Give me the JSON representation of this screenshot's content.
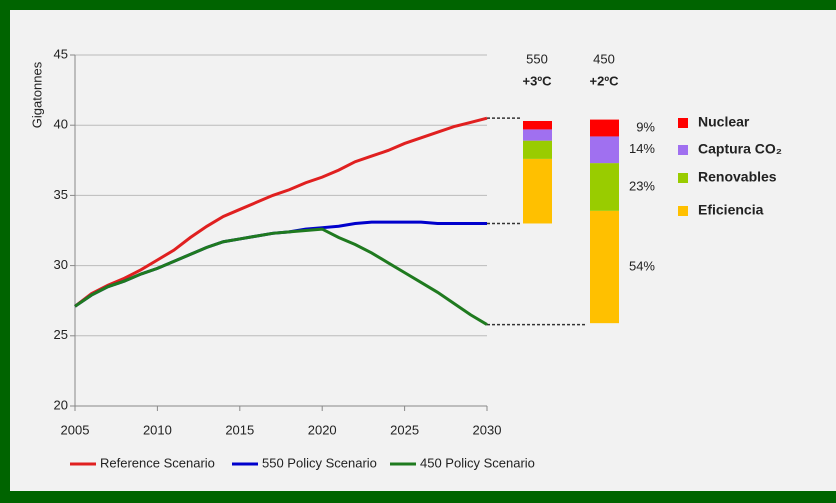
{
  "chart_data": {
    "type": "line",
    "ylabel": "Gigatonnes",
    "x": [
      2005,
      2006,
      2007,
      2008,
      2009,
      2010,
      2011,
      2012,
      2013,
      2014,
      2015,
      2016,
      2017,
      2018,
      2019,
      2020,
      2021,
      2022,
      2023,
      2024,
      2025,
      2026,
      2027,
      2028,
      2029,
      2030
    ],
    "xlim": [
      2005,
      2030
    ],
    "xticks": [
      2005,
      2010,
      2015,
      2020,
      2025,
      2030
    ],
    "ylim": [
      20,
      45
    ],
    "yticks": [
      20,
      25,
      30,
      35,
      40,
      45
    ],
    "grid": true,
    "series": [
      {
        "name": "Reference Scenario",
        "color": "#e02020",
        "values": [
          27.1,
          28.0,
          28.6,
          29.1,
          29.7,
          30.4,
          31.1,
          32.0,
          32.8,
          33.5,
          34.0,
          34.5,
          35.0,
          35.4,
          35.9,
          36.3,
          36.8,
          37.4,
          37.8,
          38.2,
          38.7,
          39.1,
          39.5,
          39.9,
          40.2,
          40.5
        ]
      },
      {
        "name": "550 Policy Scenario",
        "color": "#0000cc",
        "values": [
          27.1,
          27.9,
          28.5,
          28.9,
          29.4,
          29.8,
          30.3,
          30.8,
          31.3,
          31.7,
          31.9,
          32.1,
          32.3,
          32.4,
          32.6,
          32.7,
          32.8,
          33.0,
          33.1,
          33.1,
          33.1,
          33.1,
          33.0,
          33.0,
          33.0,
          33.0
        ]
      },
      {
        "name": "450 Policy Scenario",
        "color": "#1f7a1f",
        "values": [
          27.1,
          27.9,
          28.5,
          28.9,
          29.4,
          29.8,
          30.3,
          30.8,
          31.3,
          31.7,
          31.9,
          32.1,
          32.3,
          32.4,
          32.5,
          32.6,
          32.0,
          31.5,
          30.9,
          30.2,
          29.5,
          28.8,
          28.1,
          27.3,
          26.5,
          25.8
        ]
      }
    ],
    "stacked_bars": {
      "components": [
        {
          "name": "Eficiencia",
          "color": "#ffc000"
        },
        {
          "name": "Renovables",
          "color": "#99cc00"
        },
        {
          "name": "Captura CO₂",
          "color": "#a070f0"
        },
        {
          "name": "Nuclear",
          "color": "#ff0000"
        }
      ],
      "columns": [
        {
          "label": "550",
          "temperature": "+3ºC",
          "base": 33.0,
          "values": [
            4.6,
            1.3,
            0.8,
            0.6
          ]
        },
        {
          "label": "450",
          "temperature": "+2ºC",
          "base": 25.9,
          "values": [
            8.0,
            3.4,
            1.9,
            1.2
          ],
          "shares": [
            "54%",
            "23%",
            "14%",
            "9%"
          ]
        }
      ]
    }
  }
}
